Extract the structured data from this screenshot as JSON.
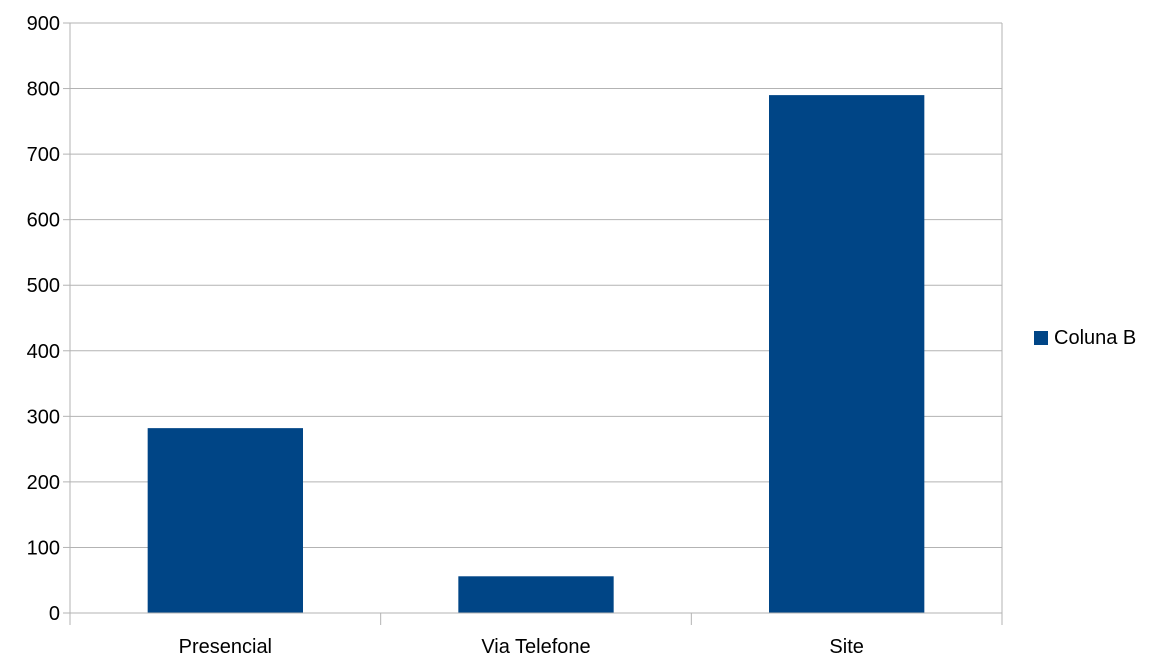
{
  "chart_data": {
    "type": "bar",
    "categories": [
      "Presencial",
      "Via Telefone",
      "Site"
    ],
    "series": [
      {
        "name": "Coluna B",
        "values": [
          282,
          56,
          790
        ],
        "color": "#004586"
      }
    ],
    "title": "",
    "xlabel": "",
    "ylabel": "",
    "ylim": [
      0,
      900
    ],
    "yticks": [
      0,
      100,
      200,
      300,
      400,
      500,
      600,
      700,
      800,
      900
    ],
    "grid": true,
    "legend_position": "right",
    "colors": {
      "bar": "#004586",
      "grid": "#b3b3b3",
      "axis": "#b3b3b3",
      "text": "#000000",
      "background": "#ffffff"
    }
  }
}
